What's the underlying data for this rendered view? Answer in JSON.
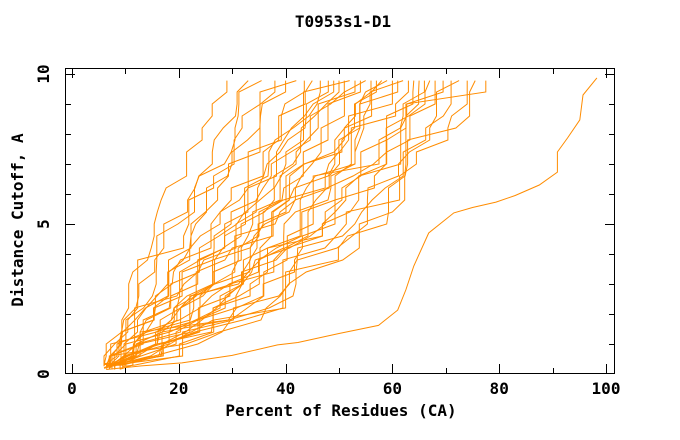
{
  "title": "T0953s1-D1",
  "colors": {
    "curve": "#ff8c00",
    "axis": "#000000",
    "background": "#ffffff",
    "text": "#000000"
  },
  "chart_data": {
    "type": "line",
    "title": "T0953s1-D1",
    "xlabel": "Percent of Residues (CA)",
    "ylabel": "Distance Cutoff, A",
    "xlim": [
      0,
      100
    ],
    "ylim": [
      0,
      10
    ],
    "grid": false,
    "legend": "none",
    "x_major_ticks": [
      0,
      20,
      40,
      60,
      80,
      100
    ],
    "x_minor_step": 10,
    "y_major_ticks": [
      0,
      5,
      10
    ],
    "y_minor_step": 1,
    "description": "Cumulative model-accuracy curves for target T0953s1-D1: each orange line is one predicted model; x = percent of CA residues fitting under the distance cutoff y. About 36 curves fan from (~6%,0.2A) up to 29-78% at 9.8A, plus one slow outlier reaching ~98%.",
    "y_levels": [
      0.3,
      0.6,
      1.0,
      1.4,
      1.8,
      2.2,
      2.6,
      3.0,
      3.4,
      3.8,
      4.2,
      4.6,
      5.0,
      5.4,
      5.8,
      6.2,
      6.6,
      7.0,
      7.4,
      7.8,
      8.2,
      8.6,
      9.0,
      9.4,
      9.78
    ],
    "models": [
      {
        "start": 6.0,
        "end": 29.0,
        "q": 1.2
      },
      {
        "start": 6.5,
        "end": 33.0,
        "q": 1.1
      },
      {
        "start": 7.0,
        "end": 35.5,
        "q": 1.05
      },
      {
        "start": 6.0,
        "end": 38.0,
        "q": 1.0
      },
      {
        "start": 7.5,
        "end": 40.0,
        "q": 0.95
      },
      {
        "start": 6.5,
        "end": 42.0,
        "q": 0.95
      },
      {
        "start": 8.0,
        "end": 43.5,
        "q": 0.9
      },
      {
        "start": 6.0,
        "end": 45.0,
        "q": 0.88
      },
      {
        "start": 7.0,
        "end": 46.5,
        "q": 0.85
      },
      {
        "start": 8.5,
        "end": 48.0,
        "q": 0.85
      },
      {
        "start": 6.5,
        "end": 49.0,
        "q": 0.82
      },
      {
        "start": 7.5,
        "end": 50.0,
        "q": 0.8
      },
      {
        "start": 6.0,
        "end": 51.0,
        "q": 0.8
      },
      {
        "start": 8.0,
        "end": 52.0,
        "q": 0.78
      },
      {
        "start": 7.0,
        "end": 53.0,
        "q": 0.76
      },
      {
        "start": 6.5,
        "end": 54.0,
        "q": 0.75
      },
      {
        "start": 9.0,
        "end": 55.0,
        "q": 0.74
      },
      {
        "start": 7.5,
        "end": 56.0,
        "q": 0.72
      },
      {
        "start": 6.0,
        "end": 57.0,
        "q": 0.72
      },
      {
        "start": 8.0,
        "end": 58.0,
        "q": 0.7
      },
      {
        "start": 7.0,
        "end": 59.0,
        "q": 0.7
      },
      {
        "start": 6.5,
        "end": 60.0,
        "q": 0.68
      },
      {
        "start": 9.5,
        "end": 61.0,
        "q": 0.66
      },
      {
        "start": 7.5,
        "end": 62.0,
        "q": 0.66
      },
      {
        "start": 6.0,
        "end": 63.0,
        "q": 0.65
      },
      {
        "start": 8.5,
        "end": 64.0,
        "q": 0.64
      },
      {
        "start": 7.0,
        "end": 65.0,
        "q": 0.63
      },
      {
        "start": 6.5,
        "end": 66.0,
        "q": 0.62
      },
      {
        "start": 9.0,
        "end": 67.0,
        "q": 0.6
      },
      {
        "start": 7.5,
        "end": 68.0,
        "q": 0.6
      },
      {
        "start": 6.0,
        "end": 69.5,
        "q": 0.58
      },
      {
        "start": 8.0,
        "end": 71.0,
        "q": 0.56
      },
      {
        "start": 7.0,
        "end": 72.5,
        "q": 0.55
      },
      {
        "start": 6.5,
        "end": 74.0,
        "q": 0.54
      },
      {
        "start": 9.5,
        "end": 75.5,
        "q": 0.52
      },
      {
        "start": 7.0,
        "end": 77.5,
        "q": 0.5
      }
    ],
    "outlier_points": [
      [
        6.4,
        0.15
      ],
      [
        13.0,
        0.27
      ],
      [
        20.6,
        0.37
      ],
      [
        30.0,
        0.62
      ],
      [
        38.5,
        0.97
      ],
      [
        42.3,
        1.05
      ],
      [
        50.0,
        1.35
      ],
      [
        57.4,
        1.62
      ],
      [
        61.0,
        2.13
      ],
      [
        62.5,
        2.8
      ],
      [
        64.0,
        3.6
      ],
      [
        66.8,
        4.7
      ],
      [
        71.5,
        5.37
      ],
      [
        75.0,
        5.55
      ],
      [
        79.4,
        5.73
      ],
      [
        83.0,
        5.95
      ],
      [
        87.5,
        6.3
      ],
      [
        90.9,
        6.73
      ],
      [
        90.9,
        7.4
      ],
      [
        92.8,
        7.87
      ],
      [
        95.1,
        8.47
      ],
      [
        95.7,
        9.3
      ],
      [
        98.3,
        9.87
      ]
    ]
  }
}
